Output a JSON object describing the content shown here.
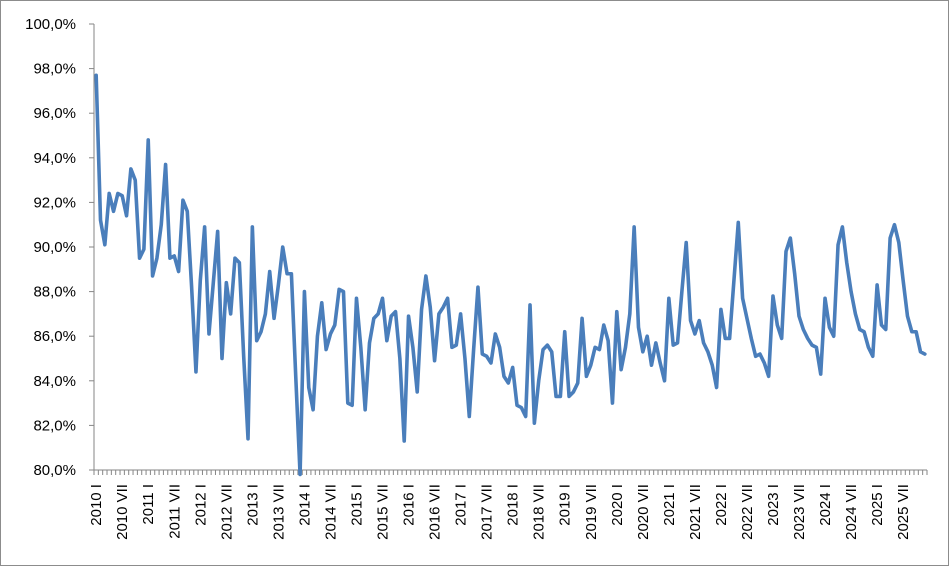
{
  "chart_data": {
    "type": "line",
    "title": "",
    "xlabel": "",
    "ylabel": "",
    "ylim": [
      80,
      100
    ],
    "yticks": [
      "80,0%",
      "82,0%",
      "84,0%",
      "86,0%",
      "88,0%",
      "90,0%",
      "92,0%",
      "94,0%",
      "96,0%",
      "98,0%",
      "100,0%"
    ],
    "ytick_values": [
      80,
      82,
      84,
      86,
      88,
      90,
      92,
      94,
      96,
      98,
      100
    ],
    "xtick_labels": [
      "2010 I",
      "2010 VII",
      "2011 I",
      "2011 VII",
      "2012 I",
      "2012 VII",
      "2013 I",
      "2013 VII",
      "2014 I",
      "2014 VII",
      "2015 I",
      "2015 VII",
      "2016 I",
      "2016 VII",
      "2017 I",
      "2017 VII",
      "2018 I",
      "2018 VII",
      "2019 I",
      "2019 VII",
      "2020 I",
      "2020 VII",
      "2021 I",
      "2021 VII",
      "2022 I",
      "2022 VII",
      "2023 I",
      "2023 VII",
      "2024 I",
      "2024 VII",
      "2025 I",
      "2025 VII"
    ],
    "grid": "none",
    "legend": "none",
    "colors": {
      "line": "#4a7ebb",
      "axis": "#868686"
    },
    "series": [
      {
        "values": [
          97.7,
          91.2,
          90.1,
          92.4,
          91.6,
          92.4,
          92.3,
          91.4,
          93.5,
          93.0,
          89.5,
          89.9,
          94.8,
          88.7,
          89.5,
          91.0,
          93.7,
          89.5,
          89.6,
          88.9,
          92.1,
          91.6,
          88.2,
          84.4,
          88.5,
          90.9,
          86.1,
          88.4,
          90.7,
          85.0,
          88.4,
          87.0,
          89.5,
          89.3,
          85.1,
          81.4,
          90.9,
          85.8,
          86.2,
          87.0,
          88.9,
          86.8,
          88.3,
          90.0,
          88.8,
          88.8,
          84.2,
          79.8,
          88.0,
          83.7,
          82.7,
          86.0,
          87.5,
          85.4,
          86.1,
          86.5,
          88.1,
          88.0,
          83.0,
          82.9,
          87.7,
          85.5,
          82.7,
          85.7,
          86.8,
          87.0,
          87.7,
          85.8,
          86.9,
          87.1,
          85.0,
          81.3,
          86.9,
          85.5,
          83.5,
          87.2,
          88.7,
          87.3,
          84.9,
          87.0,
          87.3,
          87.7,
          85.5,
          85.6,
          87.0,
          85.0,
          82.4,
          85.4,
          88.2,
          85.2,
          85.1,
          84.8,
          86.1,
          85.5,
          84.2,
          83.9,
          84.6,
          82.9,
          82.8,
          82.4,
          87.4,
          82.1,
          84.0,
          85.4,
          85.6,
          85.3,
          83.3,
          83.3,
          86.2,
          83.3,
          83.5,
          83.9,
          86.8,
          84.2,
          84.7,
          85.5,
          85.4,
          86.5,
          85.8,
          83.0,
          87.1,
          84.5,
          85.5,
          87.0,
          90.9,
          86.4,
          85.3,
          86.0,
          84.7,
          85.7,
          84.8,
          84.0,
          87.7,
          85.6,
          85.7,
          88.0,
          90.2,
          86.7,
          86.1,
          86.7,
          85.7,
          85.3,
          84.7,
          83.7,
          87.2,
          85.9,
          85.9,
          88.5,
          91.1,
          87.7,
          86.8,
          85.9,
          85.1,
          85.2,
          84.8,
          84.2,
          87.8,
          86.5,
          85.9,
          89.8,
          90.4,
          88.8,
          86.9,
          86.3,
          85.9,
          85.6,
          85.5,
          84.3,
          87.7,
          86.4,
          86.0,
          90.1,
          90.9,
          89.3,
          88.0,
          87.0,
          86.3,
          86.2,
          85.5,
          85.1,
          88.3,
          86.5,
          86.3,
          90.4,
          91.0,
          90.2,
          88.5,
          86.9,
          86.2,
          86.2,
          85.3,
          85.2
        ]
      }
    ]
  }
}
